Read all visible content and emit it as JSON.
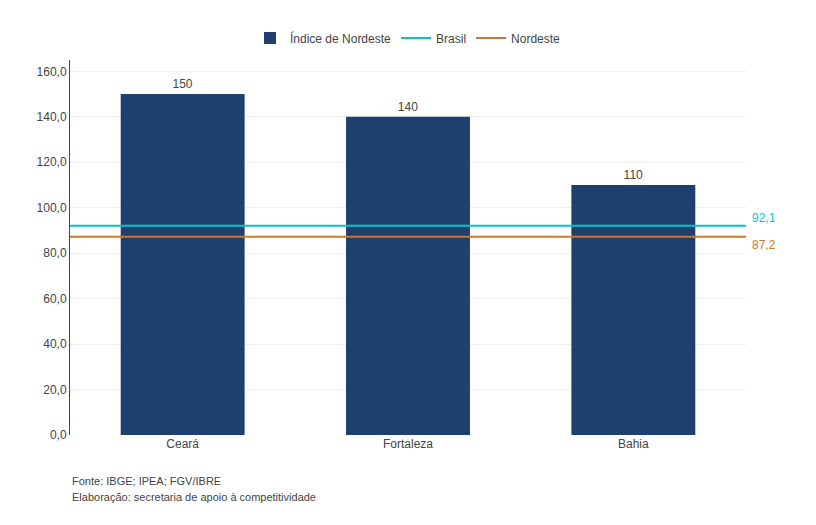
{
  "chart_data": {
    "type": "bar",
    "categories": [
      "Ceará",
      "Fortaleza",
      "Bahia"
    ],
    "series": [
      {
        "name": "Índice de Nordeste",
        "color": "#1F3F6E",
        "values": [
          150,
          140,
          110
        ]
      }
    ],
    "data_labels": true,
    "reference_lines": [
      {
        "name": "Brasil",
        "value": 92.1,
        "label": "92,1",
        "color": "#00C8C8"
      },
      {
        "name": "Nordeste",
        "value": 87.2,
        "label": "87,2",
        "color": "#C87832"
      }
    ],
    "ylim": [
      0,
      165
    ],
    "yticks": [
      {
        "value": 0,
        "label": "0,0"
      },
      {
        "value": 20,
        "label": "20,0"
      },
      {
        "value": 40,
        "label": "40,0"
      },
      {
        "value": 60,
        "label": "60,0"
      },
      {
        "value": 80,
        "label": "80,0"
      },
      {
        "value": 100,
        "label": "100,0"
      },
      {
        "value": 120,
        "label": "120,0"
      },
      {
        "value": 140,
        "label": "140,0"
      },
      {
        "value": 160,
        "label": "160,0"
      }
    ],
    "grid": true,
    "legend": "top",
    "footnotes": [
      "Fonte: IBGE; IPEA; FGV/IBRE",
      "Elaboração: secretaria de apoio à competitividade"
    ]
  }
}
